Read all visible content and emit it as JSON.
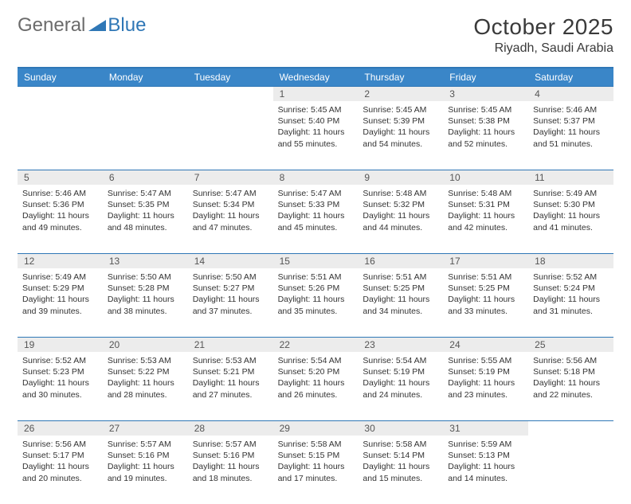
{
  "brand": {
    "part1": "General",
    "part2": "Blue"
  },
  "title": "October 2025",
  "location": "Riyadh, Saudi Arabia",
  "colors": {
    "header_bg": "#3a86c8",
    "border": "#2f77b6",
    "daynum_bg": "#ececec",
    "text": "#333333",
    "brand_gray": "#6b6b6b",
    "brand_blue": "#2f77b6"
  },
  "day_names": [
    "Sunday",
    "Monday",
    "Tuesday",
    "Wednesday",
    "Thursday",
    "Friday",
    "Saturday"
  ],
  "weeks": [
    {
      "cells": [
        {
          "empty": true
        },
        {
          "empty": true
        },
        {
          "empty": true
        },
        {
          "day": "1",
          "sunrise": "Sunrise: 5:45 AM",
          "sunset": "Sunset: 5:40 PM",
          "daylight": "Daylight: 11 hours and 55 minutes."
        },
        {
          "day": "2",
          "sunrise": "Sunrise: 5:45 AM",
          "sunset": "Sunset: 5:39 PM",
          "daylight": "Daylight: 11 hours and 54 minutes."
        },
        {
          "day": "3",
          "sunrise": "Sunrise: 5:45 AM",
          "sunset": "Sunset: 5:38 PM",
          "daylight": "Daylight: 11 hours and 52 minutes."
        },
        {
          "day": "4",
          "sunrise": "Sunrise: 5:46 AM",
          "sunset": "Sunset: 5:37 PM",
          "daylight": "Daylight: 11 hours and 51 minutes."
        }
      ]
    },
    {
      "cells": [
        {
          "day": "5",
          "sunrise": "Sunrise: 5:46 AM",
          "sunset": "Sunset: 5:36 PM",
          "daylight": "Daylight: 11 hours and 49 minutes."
        },
        {
          "day": "6",
          "sunrise": "Sunrise: 5:47 AM",
          "sunset": "Sunset: 5:35 PM",
          "daylight": "Daylight: 11 hours and 48 minutes."
        },
        {
          "day": "7",
          "sunrise": "Sunrise: 5:47 AM",
          "sunset": "Sunset: 5:34 PM",
          "daylight": "Daylight: 11 hours and 47 minutes."
        },
        {
          "day": "8",
          "sunrise": "Sunrise: 5:47 AM",
          "sunset": "Sunset: 5:33 PM",
          "daylight": "Daylight: 11 hours and 45 minutes."
        },
        {
          "day": "9",
          "sunrise": "Sunrise: 5:48 AM",
          "sunset": "Sunset: 5:32 PM",
          "daylight": "Daylight: 11 hours and 44 minutes."
        },
        {
          "day": "10",
          "sunrise": "Sunrise: 5:48 AM",
          "sunset": "Sunset: 5:31 PM",
          "daylight": "Daylight: 11 hours and 42 minutes."
        },
        {
          "day": "11",
          "sunrise": "Sunrise: 5:49 AM",
          "sunset": "Sunset: 5:30 PM",
          "daylight": "Daylight: 11 hours and 41 minutes."
        }
      ]
    },
    {
      "cells": [
        {
          "day": "12",
          "sunrise": "Sunrise: 5:49 AM",
          "sunset": "Sunset: 5:29 PM",
          "daylight": "Daylight: 11 hours and 39 minutes."
        },
        {
          "day": "13",
          "sunrise": "Sunrise: 5:50 AM",
          "sunset": "Sunset: 5:28 PM",
          "daylight": "Daylight: 11 hours and 38 minutes."
        },
        {
          "day": "14",
          "sunrise": "Sunrise: 5:50 AM",
          "sunset": "Sunset: 5:27 PM",
          "daylight": "Daylight: 11 hours and 37 minutes."
        },
        {
          "day": "15",
          "sunrise": "Sunrise: 5:51 AM",
          "sunset": "Sunset: 5:26 PM",
          "daylight": "Daylight: 11 hours and 35 minutes."
        },
        {
          "day": "16",
          "sunrise": "Sunrise: 5:51 AM",
          "sunset": "Sunset: 5:25 PM",
          "daylight": "Daylight: 11 hours and 34 minutes."
        },
        {
          "day": "17",
          "sunrise": "Sunrise: 5:51 AM",
          "sunset": "Sunset: 5:25 PM",
          "daylight": "Daylight: 11 hours and 33 minutes."
        },
        {
          "day": "18",
          "sunrise": "Sunrise: 5:52 AM",
          "sunset": "Sunset: 5:24 PM",
          "daylight": "Daylight: 11 hours and 31 minutes."
        }
      ]
    },
    {
      "cells": [
        {
          "day": "19",
          "sunrise": "Sunrise: 5:52 AM",
          "sunset": "Sunset: 5:23 PM",
          "daylight": "Daylight: 11 hours and 30 minutes."
        },
        {
          "day": "20",
          "sunrise": "Sunrise: 5:53 AM",
          "sunset": "Sunset: 5:22 PM",
          "daylight": "Daylight: 11 hours and 28 minutes."
        },
        {
          "day": "21",
          "sunrise": "Sunrise: 5:53 AM",
          "sunset": "Sunset: 5:21 PM",
          "daylight": "Daylight: 11 hours and 27 minutes."
        },
        {
          "day": "22",
          "sunrise": "Sunrise: 5:54 AM",
          "sunset": "Sunset: 5:20 PM",
          "daylight": "Daylight: 11 hours and 26 minutes."
        },
        {
          "day": "23",
          "sunrise": "Sunrise: 5:54 AM",
          "sunset": "Sunset: 5:19 PM",
          "daylight": "Daylight: 11 hours and 24 minutes."
        },
        {
          "day": "24",
          "sunrise": "Sunrise: 5:55 AM",
          "sunset": "Sunset: 5:19 PM",
          "daylight": "Daylight: 11 hours and 23 minutes."
        },
        {
          "day": "25",
          "sunrise": "Sunrise: 5:56 AM",
          "sunset": "Sunset: 5:18 PM",
          "daylight": "Daylight: 11 hours and 22 minutes."
        }
      ]
    },
    {
      "cells": [
        {
          "day": "26",
          "sunrise": "Sunrise: 5:56 AM",
          "sunset": "Sunset: 5:17 PM",
          "daylight": "Daylight: 11 hours and 20 minutes."
        },
        {
          "day": "27",
          "sunrise": "Sunrise: 5:57 AM",
          "sunset": "Sunset: 5:16 PM",
          "daylight": "Daylight: 11 hours and 19 minutes."
        },
        {
          "day": "28",
          "sunrise": "Sunrise: 5:57 AM",
          "sunset": "Sunset: 5:16 PM",
          "daylight": "Daylight: 11 hours and 18 minutes."
        },
        {
          "day": "29",
          "sunrise": "Sunrise: 5:58 AM",
          "sunset": "Sunset: 5:15 PM",
          "daylight": "Daylight: 11 hours and 17 minutes."
        },
        {
          "day": "30",
          "sunrise": "Sunrise: 5:58 AM",
          "sunset": "Sunset: 5:14 PM",
          "daylight": "Daylight: 11 hours and 15 minutes."
        },
        {
          "day": "31",
          "sunrise": "Sunrise: 5:59 AM",
          "sunset": "Sunset: 5:13 PM",
          "daylight": "Daylight: 11 hours and 14 minutes."
        },
        {
          "empty": true
        }
      ]
    }
  ]
}
